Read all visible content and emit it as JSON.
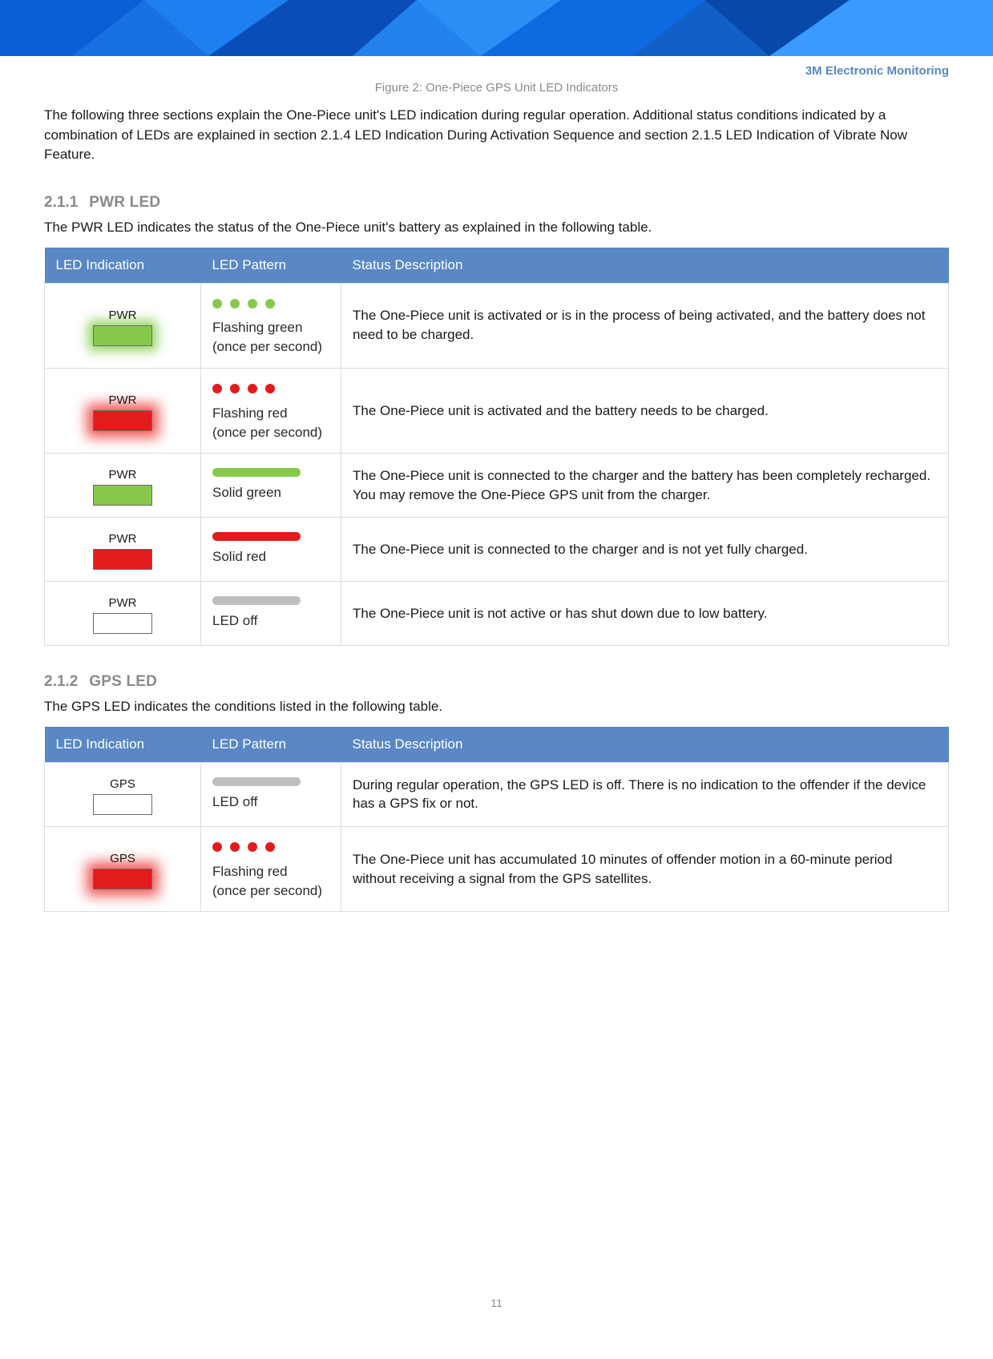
{
  "colors": {
    "banner_shades": [
      "#0a5fd6",
      "#1e7ff0",
      "#0a4db8",
      "#2a8ff5",
      "#0d6ae0",
      "#0848a8",
      "#3a9aff"
    ],
    "header_bg": "#5a87c5",
    "header_text": "#ffffff",
    "border": "#d6dde6",
    "brand_text": "#5a87c5",
    "muted": "#8a8a8a",
    "green": "#86c94a",
    "red": "#e21c1c",
    "grey": "#bfbfbf",
    "off_fill": "#ffffff"
  },
  "brand": "3M Electronic Monitoring",
  "figure_caption": "Figure 2: One-Piece GPS Unit LED Indicators",
  "intro": "The following three sections explain the One-Piece unit's LED indication during regular operation. Additional status conditions indicated by a combination of LEDs are explained in section 2.1.4 LED Indication During Activation Sequence and section 2.1.5 LED Indication of Vibrate Now Feature.",
  "table_headers": [
    "LED Indication",
    "LED Pattern",
    "Status Description"
  ],
  "sections": [
    {
      "num": "2.1.1",
      "title": "PWR LED",
      "desc": "The PWR LED indicates the status of the One-Piece unit's battery as explained in the following table.",
      "rows": [
        {
          "led_label": "PWR",
          "led_fill": "#86c94a",
          "led_glow": "green",
          "pattern_type": "dots",
          "pattern_color": "#86c94a",
          "pattern_text1": "Flashing green",
          "pattern_text2": "(once per second)",
          "status": "The One-Piece unit is activated or is in the process of being activated, and the battery does not need to be charged."
        },
        {
          "led_label": "PWR",
          "led_fill": "#e21c1c",
          "led_glow": "red",
          "pattern_type": "dots",
          "pattern_color": "#e21c1c",
          "pattern_text1": "Flashing red",
          "pattern_text2": "(once per second)",
          "status": "The One-Piece unit is activated and the battery needs to be charged."
        },
        {
          "led_label": "PWR",
          "led_fill": "#86c94a",
          "led_glow": "none",
          "pattern_type": "bar",
          "pattern_color": "#86c94a",
          "pattern_text1": "Solid green",
          "pattern_text2": "",
          "status": "The One-Piece unit is connected to the charger and the battery has been completely recharged. You may remove the One-Piece GPS unit from the charger."
        },
        {
          "led_label": "PWR",
          "led_fill": "#e21c1c",
          "led_glow": "none",
          "pattern_type": "bar",
          "pattern_color": "#e21c1c",
          "pattern_text1": "Solid red",
          "pattern_text2": "",
          "status": "The One-Piece unit is connected to the charger and is not yet fully charged."
        },
        {
          "led_label": "PWR",
          "led_fill": "#ffffff",
          "led_glow": "none",
          "pattern_type": "bar",
          "pattern_color": "#bfbfbf",
          "pattern_text1": "LED off",
          "pattern_text2": "",
          "status": "The One-Piece unit is not active or has shut down due to low battery."
        }
      ]
    },
    {
      "num": "2.1.2",
      "title": "GPS LED",
      "desc": "The GPS LED indicates the conditions listed in the following table.",
      "rows": [
        {
          "led_label": "GPS",
          "led_fill": "#ffffff",
          "led_glow": "none",
          "pattern_type": "bar",
          "pattern_color": "#bfbfbf",
          "pattern_text1": "LED off",
          "pattern_text2": "",
          "status": "During regular operation, the GPS LED is off. There is no indication to the offender if the device has a GPS fix or not."
        },
        {
          "led_label": "GPS",
          "led_fill": "#e21c1c",
          "led_glow": "red",
          "pattern_type": "dots",
          "pattern_color": "#e21c1c",
          "pattern_text1": "Flashing red",
          "pattern_text2": "(once per second)",
          "status": "The One-Piece unit has accumulated 10 minutes of offender motion in a 60-minute period without receiving a signal from the GPS satellites."
        }
      ]
    }
  ],
  "page_number": "11"
}
